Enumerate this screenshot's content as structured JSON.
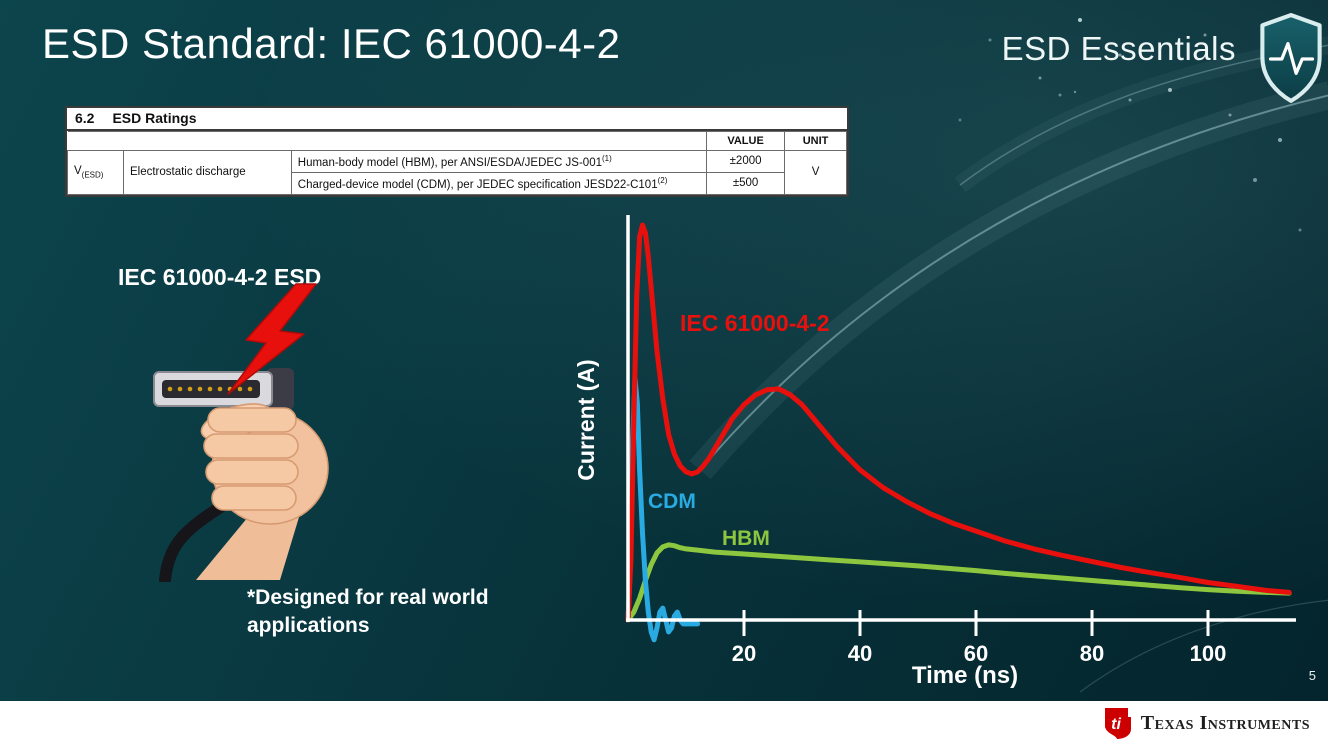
{
  "slide": {
    "title": "ESD Standard: IEC 61000-4-2",
    "brand": "ESD Essentials",
    "page_number": "5",
    "footer": {
      "logo_monogram": "ti",
      "logo_text": "Texas Instruments"
    }
  },
  "ratings_table": {
    "section_number": "6.2",
    "section_title": "ESD Ratings",
    "col_headers": {
      "value": "VALUE",
      "unit": "UNIT"
    },
    "row_symbol": "V",
    "row_symbol_sub": "(ESD)",
    "row_parameter": "Electrostatic discharge",
    "rows": [
      {
        "description": "Human-body model (HBM), per ANSI/ESDA/JEDEC JS-001",
        "description_sup": "(1)",
        "value": "±2000"
      },
      {
        "description": "Charged-device model (CDM), per JEDEC specification JESD22-C101",
        "description_sup": "(2)",
        "value": "±500"
      }
    ],
    "unit": "V"
  },
  "left_panel": {
    "caption": "IEC 61000-4-2 ESD",
    "footnote_line1": "*Designed for real world",
    "footnote_line2": "applications"
  },
  "colors": {
    "iec_red": "#e8100c",
    "cdm_blue": "#29abe2",
    "hbm_green": "#8dc63f",
    "ti_red": "#cc0000"
  },
  "chart_data": {
    "type": "line",
    "title": "",
    "xlabel": "Time (ns)",
    "ylabel": "Current (A)",
    "x_ticks": [
      20,
      40,
      60,
      80,
      100
    ],
    "x_range": [
      0,
      115
    ],
    "y_range": [
      -0.06,
      1.05
    ],
    "grid": false,
    "legend_position": "inline-labels",
    "series": [
      {
        "name": "IEC 61000-4-2",
        "color": "#e8100c",
        "points": [
          [
            0,
            0
          ],
          [
            0.5,
            0.15
          ],
          [
            1,
            0.5
          ],
          [
            1.5,
            0.82
          ],
          [
            2,
            0.97
          ],
          [
            2.5,
            1.0
          ],
          [
            3,
            0.98
          ],
          [
            3.5,
            0.92
          ],
          [
            4,
            0.84
          ],
          [
            5,
            0.68
          ],
          [
            6,
            0.56
          ],
          [
            7,
            0.47
          ],
          [
            8,
            0.42
          ],
          [
            9,
            0.39
          ],
          [
            10,
            0.375
          ],
          [
            11,
            0.37
          ],
          [
            12,
            0.375
          ],
          [
            13,
            0.39
          ],
          [
            14,
            0.41
          ],
          [
            16,
            0.46
          ],
          [
            18,
            0.51
          ],
          [
            20,
            0.545
          ],
          [
            22,
            0.57
          ],
          [
            24,
            0.583
          ],
          [
            26,
            0.585
          ],
          [
            28,
            0.57
          ],
          [
            30,
            0.545
          ],
          [
            32,
            0.51
          ],
          [
            34,
            0.475
          ],
          [
            36,
            0.44
          ],
          [
            38,
            0.41
          ],
          [
            40,
            0.38
          ],
          [
            44,
            0.335
          ],
          [
            48,
            0.3
          ],
          [
            52,
            0.27
          ],
          [
            56,
            0.245
          ],
          [
            60,
            0.225
          ],
          [
            65,
            0.2
          ],
          [
            70,
            0.18
          ],
          [
            75,
            0.163
          ],
          [
            80,
            0.148
          ],
          [
            85,
            0.133
          ],
          [
            90,
            0.12
          ],
          [
            95,
            0.108
          ],
          [
            100,
            0.095
          ],
          [
            105,
            0.085
          ],
          [
            110,
            0.075
          ],
          [
            114,
            0.07
          ]
        ]
      },
      {
        "name": "CDM",
        "color": "#29abe2",
        "points": [
          [
            0,
            0
          ],
          [
            0.3,
            0.1
          ],
          [
            0.8,
            0.45
          ],
          [
            1.2,
            0.61
          ],
          [
            1.6,
            0.55
          ],
          [
            2,
            0.38
          ],
          [
            2.5,
            0.22
          ],
          [
            3,
            0.1
          ],
          [
            3.5,
            0.02
          ],
          [
            4,
            -0.03
          ],
          [
            4.5,
            -0.05
          ],
          [
            5,
            -0.02
          ],
          [
            5.5,
            0.02
          ],
          [
            6,
            0.03
          ],
          [
            6.5,
            0
          ],
          [
            7,
            -0.03
          ],
          [
            7.5,
            -0.02
          ],
          [
            8,
            0.01
          ],
          [
            8.5,
            0.02
          ],
          [
            9,
            0
          ],
          [
            9.5,
            -0.01
          ],
          [
            10,
            -0.01
          ],
          [
            11,
            -0.01
          ],
          [
            12,
            -0.01
          ]
        ]
      },
      {
        "name": "HBM",
        "color": "#8dc63f",
        "points": [
          [
            0,
            0
          ],
          [
            1,
            0.02
          ],
          [
            2,
            0.055
          ],
          [
            3,
            0.1
          ],
          [
            4,
            0.14
          ],
          [
            5,
            0.17
          ],
          [
            6,
            0.185
          ],
          [
            7,
            0.19
          ],
          [
            8,
            0.188
          ],
          [
            9,
            0.183
          ],
          [
            10,
            0.18
          ],
          [
            12,
            0.177
          ],
          [
            15,
            0.172
          ],
          [
            20,
            0.167
          ],
          [
            25,
            0.162
          ],
          [
            30,
            0.157
          ],
          [
            35,
            0.152
          ],
          [
            40,
            0.147
          ],
          [
            45,
            0.142
          ],
          [
            50,
            0.137
          ],
          [
            55,
            0.131
          ],
          [
            60,
            0.125
          ],
          [
            65,
            0.118
          ],
          [
            70,
            0.112
          ],
          [
            75,
            0.106
          ],
          [
            80,
            0.1
          ],
          [
            85,
            0.094
          ],
          [
            90,
            0.088
          ],
          [
            95,
            0.082
          ],
          [
            100,
            0.077
          ],
          [
            105,
            0.073
          ],
          [
            110,
            0.07
          ],
          [
            114,
            0.068
          ]
        ]
      }
    ]
  }
}
